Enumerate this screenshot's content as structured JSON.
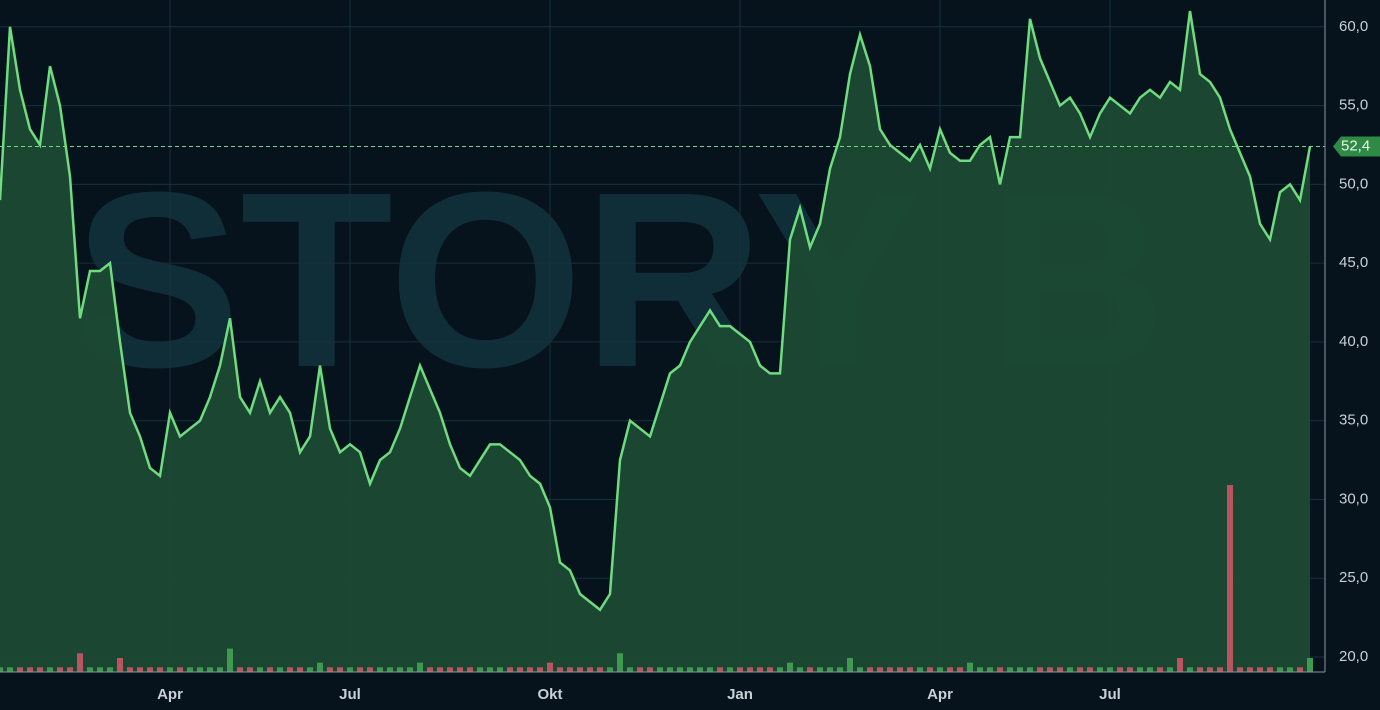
{
  "chart_data": {
    "type": "line",
    "watermark": "STORY B",
    "categories": [
      null,
      null,
      null,
      null,
      null,
      null,
      null,
      null,
      null,
      null,
      null,
      null,
      null,
      null,
      null,
      null,
      null,
      "Apr",
      null,
      null,
      null,
      null,
      null,
      null,
      null,
      null,
      null,
      null,
      null,
      null,
      null,
      null,
      null,
      null,
      null,
      "Jul",
      null,
      null,
      null,
      null,
      null,
      null,
      null,
      null,
      null,
      null,
      null,
      null,
      null,
      null,
      null,
      null,
      null,
      null,
      null,
      "Okt",
      null,
      null,
      null,
      null,
      null,
      null,
      null,
      null,
      null,
      null,
      null,
      null,
      null,
      null,
      null,
      null,
      null,
      null,
      "Jan",
      null,
      null,
      null,
      null,
      null,
      null,
      null,
      null,
      null,
      null,
      null,
      null,
      null,
      null,
      null,
      null,
      null,
      null,
      null,
      "Apr",
      null,
      null,
      null,
      null,
      null,
      null,
      null,
      null,
      null,
      null,
      null,
      null,
      null,
      null,
      null,
      null,
      "Jul",
      null,
      null,
      null,
      null,
      null,
      null,
      null,
      null,
      null,
      null,
      null,
      null,
      null,
      null,
      null,
      null,
      null,
      null,
      null,
      null
    ],
    "series": [
      {
        "name": "STORY B",
        "color": "#6fdc7f",
        "values": [
          49,
          60,
          56,
          53.5,
          52.5,
          57.5,
          55,
          50.5,
          41.5,
          44.5,
          44.5,
          45,
          40,
          35.5,
          34,
          32,
          31.5,
          35.5,
          34,
          34.5,
          35,
          36.5,
          38.5,
          41.5,
          36.5,
          35.5,
          37.5,
          35.5,
          36.5,
          35.5,
          33,
          34,
          38.5,
          34.5,
          33,
          33.5,
          33,
          31,
          32.5,
          33,
          34.5,
          36.5,
          38.5,
          37,
          35.5,
          33.5,
          32,
          31.5,
          32.5,
          33.5,
          33.5,
          33,
          32.5,
          31.5,
          31,
          29.5,
          26,
          25.5,
          24,
          23.5,
          23,
          24,
          32.5,
          35,
          34.5,
          34,
          36,
          38,
          38.5,
          40,
          41,
          42,
          41,
          41,
          40.5,
          40,
          38.5,
          38,
          38,
          46.5,
          48.5,
          46,
          47.5,
          51,
          53,
          57,
          59.5,
          57.5,
          53.5,
          52.5,
          52,
          51.5,
          52.5,
          51,
          53.5,
          52,
          51.5,
          51.5,
          52.5,
          53,
          50,
          53,
          53,
          60.5,
          58,
          56.5,
          55,
          55.5,
          54.5,
          53,
          54.5,
          55.5,
          55,
          54.5,
          55.5,
          56,
          55.5,
          56.5,
          56,
          61,
          57,
          56.5,
          55.5,
          53.5,
          52,
          50.5,
          47.5,
          46.5,
          49.5,
          50,
          49,
          52.4
        ]
      },
      {
        "name": "Volume",
        "up_color": "#3f9a4f",
        "down_color": "#b8555e",
        "values": [
          1,
          1,
          1,
          1,
          1,
          1,
          1,
          1,
          4,
          1,
          1,
          1,
          3,
          1,
          1,
          1,
          1,
          1,
          1,
          1,
          1,
          1,
          1,
          5,
          1,
          1,
          1,
          1,
          1,
          1,
          1,
          1,
          2,
          1,
          1,
          1,
          1,
          1,
          1,
          1,
          1,
          1,
          2,
          1,
          1,
          1,
          1,
          1,
          1,
          1,
          1,
          1,
          1,
          1,
          1,
          2,
          1,
          1,
          1,
          1,
          1,
          1,
          4,
          1,
          1,
          1,
          1,
          1,
          1,
          1,
          1,
          1,
          1,
          1,
          1,
          1,
          1,
          1,
          1,
          2,
          1,
          1,
          1,
          1,
          1,
          3,
          1,
          1,
          1,
          1,
          1,
          1,
          1,
          1,
          1,
          1,
          1,
          2,
          1,
          1,
          1,
          1,
          1,
          1,
          1,
          1,
          1,
          1,
          1,
          1,
          1,
          1,
          1,
          1,
          1,
          1,
          1,
          1,
          3,
          1,
          1,
          1,
          1,
          40,
          1,
          1,
          1,
          1,
          1,
          1,
          1,
          3
        ]
      }
    ],
    "last_label": "52,4",
    "ylim": [
      19.05,
      61.7
    ],
    "yticks": [
      {
        "value": 20,
        "label": "20,0"
      },
      {
        "value": 25,
        "label": "25,0"
      },
      {
        "value": 30,
        "label": "30,0"
      },
      {
        "value": 35,
        "label": "35,0"
      },
      {
        "value": 40,
        "label": "40,0"
      },
      {
        "value": 45,
        "label": "45,0"
      },
      {
        "value": 50,
        "label": "50,0"
      },
      {
        "value": 55,
        "label": "55,0"
      },
      {
        "value": 60,
        "label": "60,0"
      }
    ],
    "grid": true
  }
}
